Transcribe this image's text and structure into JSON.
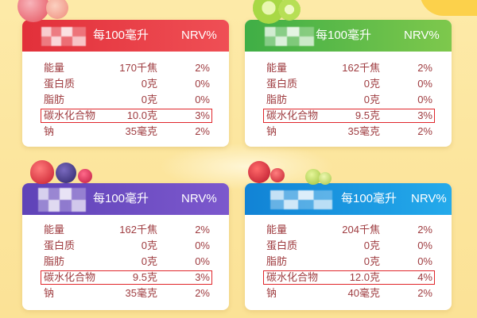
{
  "colors": {
    "text": "#9e3b3f",
    "highlight": "#e0262b",
    "background": "#fde7a0"
  },
  "cards": [
    {
      "theme": "red",
      "header_colors": [
        "#e2303a",
        "#ef4f55"
      ],
      "header": {
        "per_label": "每100毫升",
        "nrv_label": "NRV%"
      },
      "rows": [
        {
          "name": "能量",
          "value": "170千焦",
          "nrv": "2%"
        },
        {
          "name": "蛋白质",
          "value": "0克",
          "nrv": "0%"
        },
        {
          "name": "脂肪",
          "value": "0克",
          "nrv": "0%"
        },
        {
          "name": "碳水化合物",
          "value": "10.0克",
          "nrv": "3%",
          "highlighted": true
        },
        {
          "name": "钠",
          "value": "35毫克",
          "nrv": "2%"
        }
      ]
    },
    {
      "theme": "green",
      "header_colors": [
        "#3fae46",
        "#7ec84c"
      ],
      "header": {
        "per_label": "每100毫升",
        "nrv_label": "NRV%"
      },
      "rows": [
        {
          "name": "能量",
          "value": "162千焦",
          "nrv": "2%"
        },
        {
          "name": "蛋白质",
          "value": "0克",
          "nrv": "0%"
        },
        {
          "name": "脂肪",
          "value": "0克",
          "nrv": "0%"
        },
        {
          "name": "碳水化合物",
          "value": "9.5克",
          "nrv": "3%",
          "highlighted": true
        },
        {
          "name": "钠",
          "value": "35毫克",
          "nrv": "2%"
        }
      ]
    },
    {
      "theme": "purple",
      "header_colors": [
        "#5f43b8",
        "#7c58cd"
      ],
      "header": {
        "per_label": "每100毫升",
        "nrv_label": "NRV%"
      },
      "rows": [
        {
          "name": "能量",
          "value": "162千焦",
          "nrv": "2%"
        },
        {
          "name": "蛋白质",
          "value": "0克",
          "nrv": "0%"
        },
        {
          "name": "脂肪",
          "value": "0克",
          "nrv": "0%"
        },
        {
          "name": "碳水化合物",
          "value": "9.5克",
          "nrv": "3%",
          "highlighted": true
        },
        {
          "name": "钠",
          "value": "35毫克",
          "nrv": "2%"
        }
      ]
    },
    {
      "theme": "blue",
      "header_colors": [
        "#1183d5",
        "#24aaeb"
      ],
      "header": {
        "per_label": "每100毫升",
        "nrv_label": "NRV%"
      },
      "rows": [
        {
          "name": "能量",
          "value": "204千焦",
          "nrv": "2%"
        },
        {
          "name": "蛋白质",
          "value": "0克",
          "nrv": "0%"
        },
        {
          "name": "脂肪",
          "value": "0克",
          "nrv": "0%"
        },
        {
          "name": "碳水化合物",
          "value": "12.0克",
          "nrv": "4%",
          "highlighted": true
        },
        {
          "name": "钠",
          "value": "40毫克",
          "nrv": "2%"
        }
      ]
    }
  ]
}
